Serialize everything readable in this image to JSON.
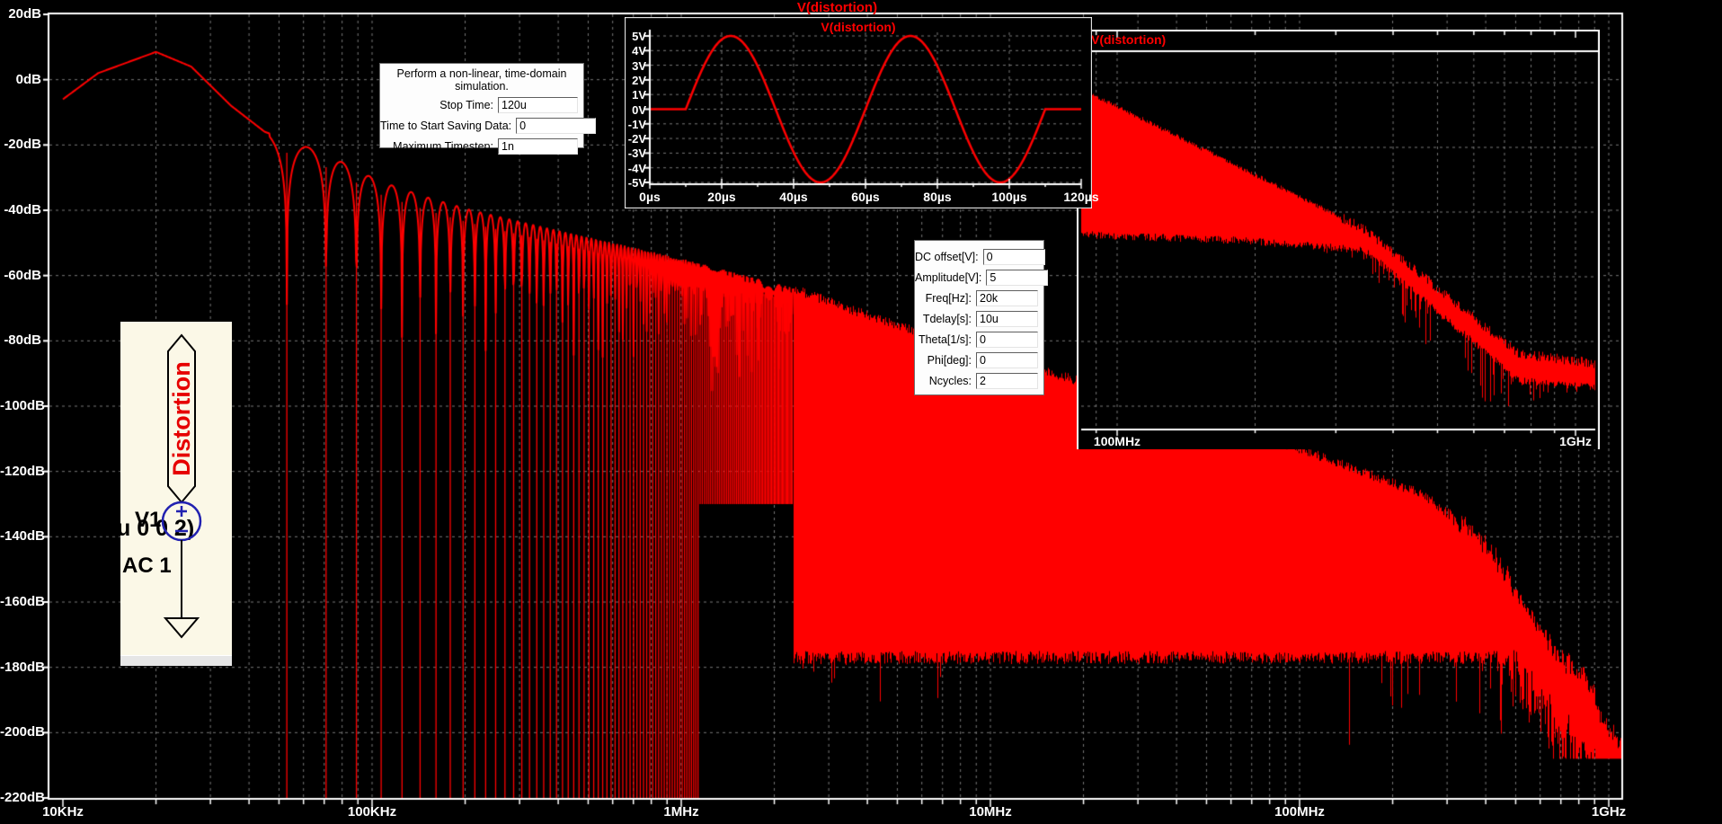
{
  "app": {
    "bg_color": "#000000",
    "trace_color": "#FF0000",
    "grid_color": "#787878"
  },
  "main_plot": {
    "title": "V(distortion)",
    "y_axis": {
      "unit": "dB",
      "tick_labels": [
        "20dB",
        "0dB",
        "-20dB",
        "-40dB",
        "-60dB",
        "-80dB",
        "-100dB",
        "-120dB",
        "-140dB",
        "-160dB",
        "-180dB",
        "-200dB",
        "-220dB"
      ],
      "tick_values": [
        20,
        0,
        -20,
        -40,
        -60,
        -80,
        -100,
        -120,
        -140,
        -160,
        -180,
        -200,
        -220
      ]
    },
    "x_axis": {
      "scale": "log",
      "tick_labels": [
        "10KHz",
        "100KHz",
        "1MHz",
        "10MHz",
        "100MHz",
        "1GHz"
      ],
      "tick_values_hz": [
        10000,
        100000,
        1000000,
        10000000,
        100000000,
        1000000000
      ]
    }
  },
  "time_inset": {
    "title": "V(distortion)",
    "y_axis": {
      "tick_labels": [
        "5V",
        "4V",
        "3V",
        "2V",
        "1V",
        "0V",
        "-1V",
        "-2V",
        "-3V",
        "-4V",
        "-5V"
      ],
      "tick_values": [
        5,
        4,
        3,
        2,
        1,
        0,
        -1,
        -2,
        -3,
        -4,
        -5
      ]
    },
    "x_axis": {
      "tick_labels": [
        "0µs",
        "20µs",
        "40µs",
        "60µs",
        "80µs",
        "100µs",
        "120µs"
      ],
      "tick_values_us": [
        0,
        20,
        40,
        60,
        80,
        100,
        120
      ]
    }
  },
  "right_inset": {
    "title": "V(distortion)",
    "x_axis": {
      "scale": "log",
      "tick_labels": [
        "100MHz",
        "1GHz"
      ],
      "tick_values_hz": [
        100000000,
        1000000000
      ]
    }
  },
  "sim_dialog": {
    "title": "Perform a non-linear, time-domain simulation.",
    "fields": [
      {
        "label": "Stop Time:",
        "value": "120u"
      },
      {
        "label": "Time to Start Saving Data:",
        "value": "0"
      },
      {
        "label": "Maximum Timestep:",
        "value": "1n"
      }
    ]
  },
  "sine_dialog": {
    "fields": [
      {
        "label": "DC offset[V]:",
        "value": "0"
      },
      {
        "label": "Amplitude[V]:",
        "value": "5"
      },
      {
        "label": "Freq[Hz]:",
        "value": "20k"
      },
      {
        "label": "Tdelay[s]:",
        "value": "10u"
      },
      {
        "label": "Theta[1/s]:",
        "value": "0"
      },
      {
        "label": "Phi[deg]:",
        "value": "0"
      },
      {
        "label": "Ncycles:",
        "value": "2"
      }
    ]
  },
  "schematic": {
    "net_label": "Distortion",
    "directive_fragment": "u 0 0 2)",
    "refdes": "V1",
    "spice_value": "AC 1"
  },
  "chart_data": [
    {
      "type": "line",
      "name": "main-fft-spectrum",
      "title": "V(distortion)",
      "x_axis": {
        "scale": "log",
        "unit": "Hz",
        "min": 10000,
        "max": 1120000000,
        "ticks": [
          "10KHz",
          "100KHz",
          "1MHz",
          "10MHz",
          "100MHz",
          "1GHz"
        ]
      },
      "y_axis": {
        "unit": "dB",
        "min": -220,
        "max": 20,
        "ticks": [
          "20dB",
          "0dB",
          "-20dB",
          "-40dB",
          "-60dB",
          "-80dB",
          "-100dB",
          "-120dB",
          "-140dB",
          "-160dB",
          "-180dB",
          "-200dB",
          "-220dB"
        ]
      },
      "fundamental_hz": 20000,
      "peak_db": 8.5,
      "first_null_hz": 53000,
      "null_spacing_hz": 18000,
      "comb_floor_db": -130,
      "comb_floor_from_hz": 1150000,
      "dense_from_hz": 2300000,
      "noise_floor_db": -177,
      "envelope_db_points": [
        [
          10000,
          -6
        ],
        [
          13000,
          2
        ],
        [
          20000,
          8.5
        ],
        [
          26000,
          4
        ],
        [
          35000,
          -8
        ],
        [
          45000,
          -16
        ],
        [
          70000,
          -22.5
        ],
        [
          105000,
          -31
        ],
        [
          150000,
          -36
        ],
        [
          210000,
          -40
        ],
        [
          430000,
          -47
        ],
        [
          1000000,
          -55
        ],
        [
          2300000,
          -64
        ],
        [
          4200000,
          -73
        ],
        [
          10000000,
          -84
        ],
        [
          22000000,
          -94
        ],
        [
          50000000,
          -105
        ],
        [
          100000000,
          -113
        ],
        [
          250000000,
          -127
        ],
        [
          400000000,
          -142
        ],
        [
          560000000,
          -164
        ],
        [
          700000000,
          -177
        ],
        [
          850000000,
          -184
        ],
        [
          1000000000,
          -200
        ],
        [
          1120000000,
          -204
        ]
      ]
    },
    {
      "type": "line",
      "name": "time-domain-waveform",
      "title": "V(distortion)",
      "x_axis": {
        "unit": "µs",
        "min": 0,
        "max": 120,
        "ticks": [
          "0µs",
          "20µs",
          "40µs",
          "60µs",
          "80µs",
          "100µs",
          "120µs"
        ]
      },
      "y_axis": {
        "unit": "V",
        "min": -5,
        "max": 5,
        "ticks": [
          "5V",
          "4V",
          "3V",
          "2V",
          "1V",
          "0V",
          "-1V",
          "-2V",
          "-3V",
          "-4V",
          "-5V"
        ]
      },
      "waveform": {
        "shape": "sine_burst",
        "amplitude_v": 5,
        "freq_hz": 20000,
        "tdelay_us": 10,
        "ncycles": 2,
        "period_us": 50
      }
    },
    {
      "type": "area",
      "name": "hf-spectrum-band",
      "title": "V(distortion)",
      "x_axis": {
        "scale": "log",
        "unit": "Hz",
        "min": 100000000,
        "max": 1000000000,
        "ticks": [
          "100MHz",
          "1GHz"
        ]
      },
      "band": {
        "top_frac": [
          [
            0,
            0.1
          ],
          [
            0.55,
            0.47
          ],
          [
            0.85,
            0.8
          ],
          [
            1,
            0.825
          ]
        ],
        "bottom_frac": [
          [
            0,
            0.485
          ],
          [
            0.3,
            0.5
          ],
          [
            0.55,
            0.525
          ],
          [
            0.85,
            0.87
          ],
          [
            1,
            0.89
          ]
        ]
      }
    }
  ]
}
